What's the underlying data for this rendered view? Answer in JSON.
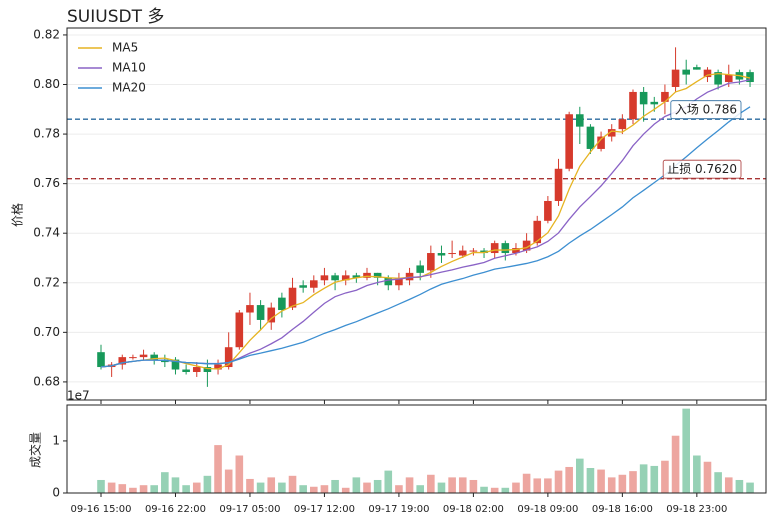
{
  "chart_data": [
    {
      "type": "candlestick",
      "title": "SUIUSDT 多",
      "ylabel": "价格",
      "legend": "upper left",
      "grid": true,
      "up_color": "#d63a2c",
      "down_color": "#17995a",
      "open": [
        0.692,
        0.686,
        0.687,
        0.69,
        0.69,
        0.691,
        0.689,
        0.689,
        0.685,
        0.684,
        0.686,
        0.685,
        0.686,
        0.694,
        0.708,
        0.711,
        0.704,
        0.714,
        0.71,
        0.719,
        0.718,
        0.721,
        0.723,
        0.721,
        0.723,
        0.722,
        0.724,
        0.722,
        0.719,
        0.721,
        0.727,
        0.725,
        0.732,
        0.732,
        0.731,
        0.733,
        0.733,
        0.732,
        0.736,
        0.732,
        0.733,
        0.736,
        0.745,
        0.753,
        0.766,
        0.788,
        0.783,
        0.774,
        0.779,
        0.782,
        0.786,
        0.797,
        0.793,
        0.793,
        0.799,
        0.806,
        0.807,
        0.803,
        0.805,
        0.801,
        0.805,
        0.805
      ],
      "high": [
        0.695,
        0.688,
        0.691,
        0.691,
        0.693,
        0.692,
        0.691,
        0.69,
        0.687,
        0.688,
        0.689,
        0.689,
        0.7,
        0.709,
        0.716,
        0.713,
        0.712,
        0.716,
        0.722,
        0.721,
        0.723,
        0.726,
        0.724,
        0.725,
        0.724,
        0.726,
        0.724,
        0.723,
        0.724,
        0.726,
        0.729,
        0.735,
        0.735,
        0.737,
        0.735,
        0.734,
        0.734,
        0.737,
        0.737,
        0.736,
        0.74,
        0.747,
        0.755,
        0.77,
        0.789,
        0.791,
        0.784,
        0.781,
        0.784,
        0.788,
        0.798,
        0.799,
        0.795,
        0.8,
        0.815,
        0.81,
        0.808,
        0.807,
        0.806,
        0.808,
        0.806,
        0.806
      ],
      "low": [
        0.685,
        0.682,
        0.685,
        0.689,
        0.689,
        0.687,
        0.686,
        0.683,
        0.683,
        0.682,
        0.678,
        0.683,
        0.685,
        0.693,
        0.703,
        0.701,
        0.701,
        0.706,
        0.709,
        0.716,
        0.716,
        0.719,
        0.717,
        0.719,
        0.72,
        0.721,
        0.719,
        0.717,
        0.717,
        0.719,
        0.721,
        0.722,
        0.728,
        0.73,
        0.73,
        0.731,
        0.73,
        0.73,
        0.729,
        0.731,
        0.732,
        0.735,
        0.744,
        0.751,
        0.765,
        0.776,
        0.772,
        0.773,
        0.777,
        0.78,
        0.784,
        0.785,
        0.789,
        0.788,
        0.797,
        0.8,
        0.806,
        0.801,
        0.798,
        0.799,
        0.8,
        0.799
      ],
      "close": [
        0.686,
        0.687,
        0.69,
        0.69,
        0.691,
        0.689,
        0.688,
        0.685,
        0.684,
        0.686,
        0.684,
        0.687,
        0.694,
        0.708,
        0.711,
        0.705,
        0.71,
        0.709,
        0.718,
        0.718,
        0.721,
        0.723,
        0.721,
        0.723,
        0.722,
        0.724,
        0.722,
        0.719,
        0.722,
        0.724,
        0.724,
        0.732,
        0.731,
        0.732,
        0.733,
        0.733,
        0.732,
        0.736,
        0.732,
        0.734,
        0.737,
        0.745,
        0.753,
        0.766,
        0.788,
        0.783,
        0.774,
        0.779,
        0.782,
        0.786,
        0.797,
        0.792,
        0.792,
        0.797,
        0.806,
        0.804,
        0.806,
        0.806,
        0.8,
        0.804,
        0.802,
        0.801
      ],
      "series": [
        {
          "name": "MA5",
          "color": "#e6b422",
          "values": [
            0.686,
            0.6865,
            0.6877,
            0.6883,
            0.6888,
            0.6894,
            0.6896,
            0.6886,
            0.6874,
            0.6864,
            0.6854,
            0.6852,
            0.687,
            0.6918,
            0.6968,
            0.701,
            0.7056,
            0.7086,
            0.7106,
            0.712,
            0.7152,
            0.7178,
            0.7202,
            0.7212,
            0.722,
            0.7226,
            0.7224,
            0.722,
            0.7218,
            0.7222,
            0.7222,
            0.7242,
            0.7266,
            0.7286,
            0.7304,
            0.7322,
            0.7322,
            0.7332,
            0.7332,
            0.7334,
            0.7342,
            0.7368,
            0.7402,
            0.747,
            0.7578,
            0.767,
            0.7728,
            0.778,
            0.7812,
            0.7808,
            0.7836,
            0.7872,
            0.79,
            0.793,
            0.797,
            0.7984,
            0.8012,
            0.8038,
            0.8044,
            0.804,
            0.8036,
            0.8026
          ]
        },
        {
          "name": "MA10",
          "color": "#8a63c6",
          "values": [
            0.686,
            0.6865,
            0.6877,
            0.6883,
            0.6888,
            0.6888,
            0.6887,
            0.6883,
            0.6878,
            0.6876,
            0.6874,
            0.6874,
            0.6878,
            0.6896,
            0.6916,
            0.6932,
            0.6954,
            0.6978,
            0.7012,
            0.7044,
            0.7081,
            0.7117,
            0.7144,
            0.7159,
            0.717,
            0.7189,
            0.7201,
            0.7211,
            0.7215,
            0.7221,
            0.7224,
            0.7233,
            0.7243,
            0.7252,
            0.7263,
            0.7272,
            0.7282,
            0.7299,
            0.7309,
            0.7319,
            0.7332,
            0.7345,
            0.7367,
            0.7401,
            0.7456,
            0.7506,
            0.7548,
            0.7591,
            0.7641,
            0.7693,
            0.7753,
            0.78,
            0.784,
            0.7871,
            0.7889,
            0.791,
            0.7942,
            0.7969,
            0.7987,
            0.8005,
            0.801,
            0.8019
          ]
        },
        {
          "name": "MA20",
          "color": "#3d8fd1",
          "values": [
            0.686,
            0.6865,
            0.6877,
            0.6883,
            0.6888,
            0.6888,
            0.6887,
            0.6883,
            0.6878,
            0.6876,
            0.6873,
            0.6873,
            0.6878,
            0.6892,
            0.6907,
            0.6916,
            0.6926,
            0.6936,
            0.6948,
            0.696,
            0.6978,
            0.6996,
            0.7011,
            0.7028,
            0.7043,
            0.7061,
            0.7078,
            0.7095,
            0.7114,
            0.7133,
            0.7153,
            0.7175,
            0.7194,
            0.7206,
            0.7217,
            0.7231,
            0.7242,
            0.7255,
            0.7262,
            0.727,
            0.7278,
            0.7289,
            0.7305,
            0.7327,
            0.736,
            0.7389,
            0.7415,
            0.7445,
            0.7475,
            0.7506,
            0.7543,
            0.7573,
            0.7604,
            0.7636,
            0.7673,
            0.7708,
            0.7745,
            0.778,
            0.7814,
            0.7849,
            0.7882,
            0.791
          ]
        }
      ],
      "hlines": [
        {
          "value": 0.786,
          "label": "入场 0.786",
          "color": "#2a6a9e"
        },
        {
          "value": 0.762,
          "label": "止损 0.7620",
          "color": "#a83434"
        }
      ],
      "ylim": [
        0.6727,
        0.8228
      ],
      "yticks": [
        0.68,
        {
          "value": 0.7,
          "label": "0.70"
        },
        0.72,
        0.74,
        0.76,
        0.78,
        {
          "value": 0.8,
          "label": "0.80"
        },
        0.82
      ]
    },
    {
      "type": "bar",
      "ylabel": "成交量",
      "offset_label": "1e7",
      "categories": [
        "09-16 15:00",
        null,
        null,
        null,
        null,
        null,
        null,
        "09-16 22:00",
        null,
        null,
        null,
        null,
        null,
        null,
        "09-17 05:00",
        null,
        null,
        null,
        null,
        null,
        null,
        "09-17 12:00",
        null,
        null,
        null,
        null,
        null,
        null,
        "09-17 19:00",
        null,
        null,
        null,
        null,
        null,
        null,
        "09-18 02:00",
        null,
        null,
        null,
        null,
        null,
        null,
        "09-18 09:00",
        null,
        null,
        null,
        null,
        null,
        null,
        "09-18 16:00",
        null,
        null,
        null,
        null,
        null,
        null,
        "09-18 23:00",
        null,
        null,
        null,
        null,
        null
      ],
      "values": [
        0.25,
        0.2,
        0.17,
        0.1,
        0.15,
        0.15,
        0.4,
        0.3,
        0.15,
        0.2,
        0.33,
        0.92,
        0.45,
        0.72,
        0.27,
        0.2,
        0.3,
        0.2,
        0.33,
        0.15,
        0.12,
        0.15,
        0.25,
        0.1,
        0.3,
        0.2,
        0.25,
        0.43,
        0.15,
        0.3,
        0.15,
        0.35,
        0.2,
        0.3,
        0.3,
        0.25,
        0.12,
        0.1,
        0.1,
        0.2,
        0.37,
        0.28,
        0.28,
        0.43,
        0.5,
        0.66,
        0.48,
        0.45,
        0.3,
        0.35,
        0.42,
        0.55,
        0.52,
        0.62,
        1.1,
        1.62,
        0.72,
        0.6,
        0.4,
        0.3,
        0.25,
        0.2
      ],
      "ylim": [
        0,
        1.69
      ],
      "yticks": [
        0,
        1
      ]
    }
  ]
}
